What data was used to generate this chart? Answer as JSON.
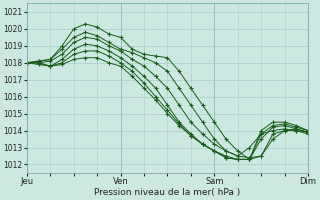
{
  "bg_color": "#cce8e0",
  "grid_color": "#a8cfc8",
  "line_color": "#1a5c1a",
  "xlabel": "Pression niveau de la mer( hPa )",
  "ylim": [
    1011.5,
    1021.5
  ],
  "yticks": [
    1012,
    1013,
    1014,
    1015,
    1016,
    1017,
    1018,
    1019,
    1020,
    1021
  ],
  "xlim": [
    0,
    288
  ],
  "day_positions": [
    0,
    96,
    192,
    288
  ],
  "day_labels": [
    "Jeu",
    "Ven",
    "Sam",
    "Dim"
  ],
  "series": [
    {
      "x": [
        0,
        12,
        24,
        36,
        48,
        60,
        72,
        84,
        96,
        108,
        120,
        132,
        144,
        156,
        168,
        180,
        192,
        204,
        216,
        228,
        240,
        252,
        264,
        276,
        288
      ],
      "y": [
        1018.0,
        1018.1,
        1018.2,
        1019.0,
        1020.0,
        1020.3,
        1020.1,
        1019.7,
        1019.5,
        1018.8,
        1018.5,
        1018.4,
        1018.3,
        1017.5,
        1016.5,
        1015.5,
        1014.5,
        1013.5,
        1012.8,
        1012.3,
        1012.5,
        1013.8,
        1014.0,
        1014.0,
        1013.9
      ]
    },
    {
      "x": [
        0,
        12,
        24,
        36,
        48,
        60,
        72,
        84,
        96,
        108,
        120,
        132,
        144,
        156,
        168,
        180,
        192,
        204,
        216,
        228,
        240,
        252,
        264,
        276,
        288
      ],
      "y": [
        1018.0,
        1018.1,
        1018.2,
        1018.8,
        1019.5,
        1019.8,
        1019.6,
        1019.2,
        1018.8,
        1018.6,
        1018.3,
        1018.0,
        1017.5,
        1016.5,
        1015.5,
        1014.5,
        1013.5,
        1012.8,
        1012.5,
        1013.0,
        1013.8,
        1014.0,
        1014.1,
        1014.0,
        1013.8
      ]
    },
    {
      "x": [
        0,
        12,
        24,
        36,
        48,
        60,
        72,
        84,
        96,
        108,
        120,
        132,
        144,
        156,
        168,
        180,
        192,
        204,
        216,
        228,
        240,
        252,
        264,
        276,
        288
      ],
      "y": [
        1018.0,
        1018.0,
        1018.1,
        1018.5,
        1019.2,
        1019.5,
        1019.4,
        1019.0,
        1018.7,
        1018.2,
        1017.8,
        1017.2,
        1016.5,
        1015.5,
        1014.5,
        1013.8,
        1013.2,
        1012.8,
        1012.5,
        1012.4,
        1012.5,
        1013.5,
        1014.0,
        1014.1,
        1013.9
      ]
    },
    {
      "x": [
        0,
        12,
        24,
        36,
        48,
        60,
        72,
        84,
        96,
        108,
        120,
        132,
        144,
        156,
        168,
        180,
        192,
        204,
        216,
        228,
        240,
        252,
        264,
        276,
        288
      ],
      "y": [
        1018.0,
        1018.0,
        1017.8,
        1018.2,
        1018.8,
        1019.1,
        1019.0,
        1018.7,
        1018.3,
        1017.8,
        1017.2,
        1016.5,
        1015.5,
        1014.5,
        1013.8,
        1013.2,
        1012.8,
        1012.4,
        1012.3,
        1012.3,
        1013.5,
        1014.2,
        1014.3,
        1014.1,
        1013.9
      ]
    },
    {
      "x": [
        0,
        12,
        24,
        36,
        48,
        60,
        72,
        84,
        96,
        108,
        120,
        132,
        144,
        156,
        168,
        180,
        192,
        204,
        216,
        228,
        240,
        252,
        264,
        276,
        288
      ],
      "y": [
        1018.0,
        1018.0,
        1017.8,
        1018.0,
        1018.5,
        1018.7,
        1018.7,
        1018.4,
        1018.0,
        1017.5,
        1016.8,
        1016.0,
        1015.2,
        1014.4,
        1013.7,
        1013.2,
        1012.8,
        1012.4,
        1012.3,
        1012.3,
        1013.8,
        1014.3,
        1014.4,
        1014.2,
        1014.0
      ]
    },
    {
      "x": [
        0,
        12,
        24,
        36,
        48,
        60,
        72,
        84,
        96,
        108,
        120,
        132,
        144,
        156,
        168,
        180,
        192,
        204,
        216,
        228,
        240,
        252,
        264,
        276,
        288
      ],
      "y": [
        1018.0,
        1017.9,
        1017.8,
        1017.9,
        1018.2,
        1018.3,
        1018.3,
        1018.0,
        1017.8,
        1017.2,
        1016.5,
        1015.8,
        1015.0,
        1014.3,
        1013.7,
        1013.2,
        1012.8,
        1012.5,
        1012.3,
        1012.3,
        1014.0,
        1014.5,
        1014.5,
        1014.3,
        1014.0
      ]
    }
  ]
}
